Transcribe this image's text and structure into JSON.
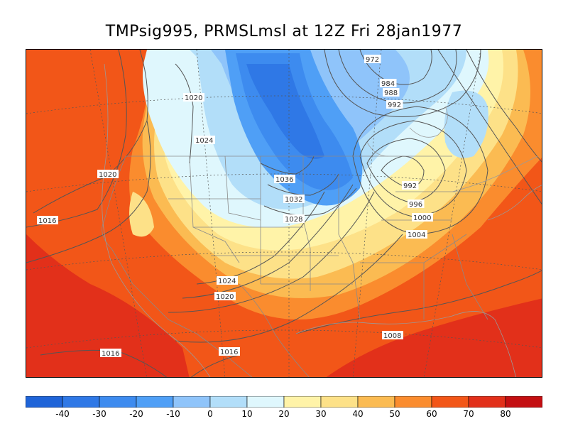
{
  "title": "TMPsig995, PRMSLmsl at 12Z Fri 28jan1977",
  "colorbar": {
    "colors": [
      "#1f64d8",
      "#2f78e6",
      "#3d8bef",
      "#4f9ff6",
      "#8fc4fa",
      "#b2def9",
      "#dff7fd",
      "#fff3a8",
      "#fde188",
      "#fbbb52",
      "#fa8c2e",
      "#f25618",
      "#e2301a",
      "#c40f12"
    ],
    "tick_labels": [
      "-40",
      "-30",
      "-20",
      "-10",
      "0",
      "10",
      "20",
      "30",
      "40",
      "50",
      "60",
      "70",
      "80"
    ]
  },
  "pressure_labels": [
    "972",
    "984",
    "988",
    "992",
    "1020",
    "1024",
    "1020",
    "1036",
    "1032",
    "1028",
    "992",
    "996",
    "1000",
    "1004",
    "1016",
    "1024",
    "1020",
    "1008",
    "1016",
    "1016"
  ],
  "icons": {
    "map": "weather-map-icon"
  }
}
